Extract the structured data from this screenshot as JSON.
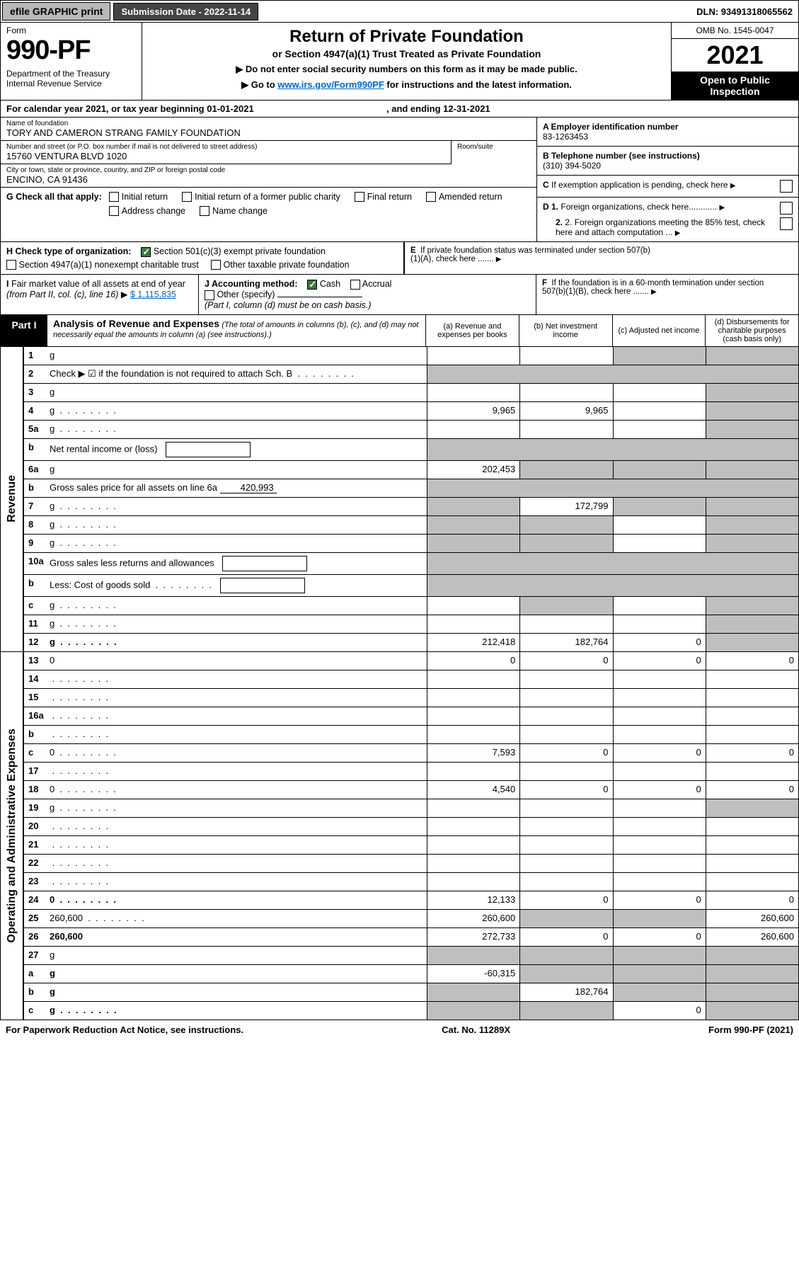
{
  "topbar": {
    "efile": "efile GRAPHIC print",
    "submission_label": "Submission Date - 2022-11-14",
    "dln": "DLN: 93491318065562"
  },
  "header": {
    "form_label": "Form",
    "form_number": "990-PF",
    "dept": "Department of the Treasury\nInternal Revenue Service",
    "title": "Return of Private Foundation",
    "subtitle": "or Section 4947(a)(1) Trust Treated as Private Foundation",
    "note1": "▶ Do not enter social security numbers on this form as it may be made public.",
    "note2_pre": "▶ Go to ",
    "note2_link": "www.irs.gov/Form990PF",
    "note2_post": " for instructions and the latest information.",
    "omb": "OMB No. 1545-0047",
    "year": "2021",
    "open": "Open to Public Inspection"
  },
  "calendar": {
    "pre": "For calendar year 2021, or tax year beginning ",
    "begin": "01-01-2021",
    "mid": " , and ending ",
    "end": "12-31-2021"
  },
  "org": {
    "name_label": "Name of foundation",
    "name": "TORY AND CAMERON STRANG FAMILY FOUNDATION",
    "addr_label": "Number and street (or P.O. box number if mail is not delivered to street address)",
    "addr": "15760 VENTURA BLVD 1020",
    "room_label": "Room/suite",
    "city_label": "City or town, state or province, country, and ZIP or foreign postal code",
    "city": "ENCINO, CA  91436"
  },
  "right": {
    "a_label": "A Employer identification number",
    "a_val": "83-1263453",
    "b_label": "B Telephone number (see instructions)",
    "b_val": "(310) 394-5020",
    "c_label": "C If exemption application is pending, check here",
    "d1_label": "D 1. Foreign organizations, check here............",
    "d2_label": "2. Foreign organizations meeting the 85% test, check here and attach computation ...",
    "e_label": "E  If private foundation status was terminated under section 507(b)(1)(A), check here .......",
    "f_label": "F  If the foundation is in a 60-month termination under section 507(b)(1)(B), check here ......."
  },
  "g": {
    "label": "G Check all that apply:",
    "opts": [
      "Initial return",
      "Initial return of a former public charity",
      "Final return",
      "Amended return",
      "Address change",
      "Name change"
    ]
  },
  "h": {
    "label": "H Check type of organization:",
    "opt1": "Section 501(c)(3) exempt private foundation",
    "opt2": "Section 4947(a)(1) nonexempt charitable trust",
    "opt3": "Other taxable private foundation"
  },
  "i": {
    "label": "I Fair market value of all assets at end of year (from Part II, col. (c), line 16) ▶",
    "val": "$  1,115,835"
  },
  "j": {
    "label": "J Accounting method:",
    "cash": "Cash",
    "accrual": "Accrual",
    "other": "Other (specify)",
    "note": "(Part I, column (d) must be on cash basis.)"
  },
  "part1": {
    "label": "Part I",
    "title": "Analysis of Revenue and Expenses",
    "note": "(The total of amounts in columns (b), (c), and (d) may not necessarily equal the amounts in column (a) (see instructions).)",
    "col_a": "(a)   Revenue and expenses per books",
    "col_b": "(b)   Net investment income",
    "col_c": "(c)   Adjusted net income",
    "col_d": "(d)   Disbursements for charitable purposes (cash basis only)"
  },
  "side_labels": {
    "rev": "Revenue",
    "exp": "Operating and Administrative Expenses"
  },
  "rows": [
    {
      "n": "1",
      "d": "g",
      "a": "",
      "b": "",
      "c": "g"
    },
    {
      "n": "2",
      "d": "Check ▶ ☑ if the foundation is not required to attach Sch. B",
      "dots": true,
      "span": true
    },
    {
      "n": "3",
      "d": "g",
      "a": "",
      "b": "",
      "c": ""
    },
    {
      "n": "4",
      "d": "g",
      "dots": true,
      "a": "9,965",
      "b": "9,965",
      "c": ""
    },
    {
      "n": "5a",
      "d": "g",
      "dots": true,
      "a": "",
      "b": "",
      "c": ""
    },
    {
      "n": "b",
      "d": "Net rental income or (loss)",
      "short": true
    },
    {
      "n": "6a",
      "d": "g",
      "a": "202,453",
      "b": "g",
      "c": "g"
    },
    {
      "n": "b",
      "d": "Gross sales price for all assets on line 6a",
      "inline": "420,993"
    },
    {
      "n": "7",
      "d": "g",
      "dots": true,
      "a": "g",
      "b": "172,799",
      "c": "g"
    },
    {
      "n": "8",
      "d": "g",
      "dots": true,
      "a": "g",
      "b": "g",
      "c": ""
    },
    {
      "n": "9",
      "d": "g",
      "dots": true,
      "a": "g",
      "b": "g",
      "c": ""
    },
    {
      "n": "10a",
      "d": "Gross sales less returns and allowances",
      "short": true
    },
    {
      "n": "b",
      "d": "Less: Cost of goods sold",
      "dots": true,
      "short": true
    },
    {
      "n": "c",
      "d": "g",
      "dots": true,
      "a": "",
      "b": "g",
      "c": ""
    },
    {
      "n": "11",
      "d": "g",
      "dots": true,
      "a": "",
      "b": "",
      "c": ""
    },
    {
      "n": "12",
      "d": "g",
      "dots": true,
      "bold": true,
      "a": "212,418",
      "b": "182,764",
      "c": "0"
    }
  ],
  "exp_rows": [
    {
      "n": "13",
      "d": "0",
      "a": "0",
      "b": "0",
      "c": "0"
    },
    {
      "n": "14",
      "d": "",
      "dots": true,
      "a": "",
      "b": "",
      "c": ""
    },
    {
      "n": "15",
      "d": "",
      "dots": true,
      "a": "",
      "b": "",
      "c": ""
    },
    {
      "n": "16a",
      "d": "",
      "dots": true,
      "a": "",
      "b": "",
      "c": ""
    },
    {
      "n": "b",
      "d": "",
      "dots": true,
      "a": "",
      "b": "",
      "c": ""
    },
    {
      "n": "c",
      "d": "0",
      "dots": true,
      "a": "7,593",
      "b": "0",
      "c": "0"
    },
    {
      "n": "17",
      "d": "",
      "dots": true,
      "a": "",
      "b": "",
      "c": ""
    },
    {
      "n": "18",
      "d": "0",
      "dots": true,
      "a": "4,540",
      "b": "0",
      "c": "0"
    },
    {
      "n": "19",
      "d": "g",
      "dots": true,
      "a": "",
      "b": "",
      "c": ""
    },
    {
      "n": "20",
      "d": "",
      "dots": true,
      "a": "",
      "b": "",
      "c": ""
    },
    {
      "n": "21",
      "d": "",
      "dots": true,
      "a": "",
      "b": "",
      "c": ""
    },
    {
      "n": "22",
      "d": "",
      "dots": true,
      "a": "",
      "b": "",
      "c": ""
    },
    {
      "n": "23",
      "d": "",
      "dots": true,
      "a": "",
      "b": "",
      "c": ""
    },
    {
      "n": "24",
      "d": "0",
      "dots": true,
      "bold": true,
      "a": "12,133",
      "b": "0",
      "c": "0"
    },
    {
      "n": "25",
      "d": "260,600",
      "dots": true,
      "a": "260,600",
      "b": "g",
      "c": "g"
    },
    {
      "n": "26",
      "d": "260,600",
      "bold": true,
      "a": "272,733",
      "b": "0",
      "c": "0"
    },
    {
      "n": "27",
      "d": "g",
      "a": "g",
      "b": "g",
      "c": "g"
    },
    {
      "n": "a",
      "d": "g",
      "bold": true,
      "a": "-60,315",
      "b": "g",
      "c": "g"
    },
    {
      "n": "b",
      "d": "g",
      "bold": true,
      "a": "g",
      "b": "182,764",
      "c": "g"
    },
    {
      "n": "c",
      "d": "g",
      "dots": true,
      "bold": true,
      "a": "g",
      "b": "g",
      "c": "0"
    }
  ],
  "footer": {
    "left": "For Paperwork Reduction Act Notice, see instructions.",
    "mid": "Cat. No. 11289X",
    "right": "Form 990-PF (2021)"
  },
  "colors": {
    "grey_cell": "#bfbfbf",
    "link": "#0066cc",
    "check_green": "#3a7a3a",
    "btn_grey": "#b8b8b8",
    "label_dark": "#444444"
  }
}
